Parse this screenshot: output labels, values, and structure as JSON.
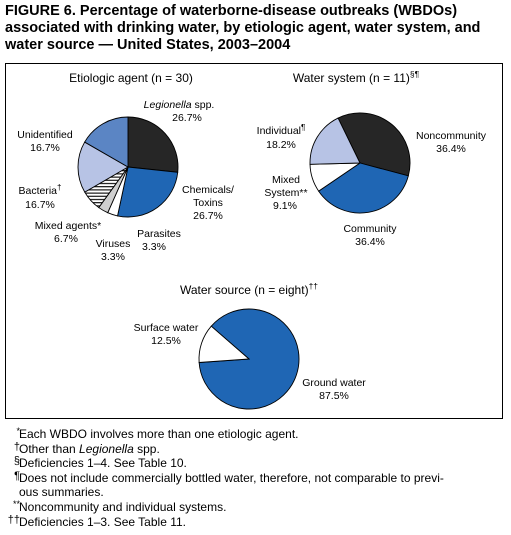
{
  "figure": {
    "title": "FIGURE 6. Percentage of waterborne-disease outbreaks (WBDOs) associated with drinking water, by etiologic agent, water system, and water source — United States, 2003–2004"
  },
  "colors": {
    "navy": "#1f66b4",
    "black": "#262626",
    "steel": "#5b85c4",
    "light": "#b7c3e5",
    "white": "#ffffff",
    "gray": "#cfcfcf",
    "stroke": "#000000"
  },
  "chart_data": [
    {
      "type": "pie",
      "title": "Etiologic agent (n = 30)",
      "slices": [
        {
          "label": "Legionella spp.",
          "label_italic": "Legionella",
          "label_rest": " spp.",
          "value": 26.7,
          "display": "26.7%",
          "color": "#262626"
        },
        {
          "label": "Chemicals/ Toxins",
          "label_lines": [
            "Chemicals/",
            "Toxins"
          ],
          "value": 26.7,
          "display": "26.7%",
          "color": "#1f66b4"
        },
        {
          "label": "Parasites",
          "value": 3.3,
          "display": "3.3%",
          "color": "#ffffff"
        },
        {
          "label": "Viruses",
          "value": 3.3,
          "display": "3.3%",
          "color": "#cfcfcf"
        },
        {
          "label": "Mixed agents*",
          "value": 6.7,
          "display": "6.7%",
          "color": "hatch"
        },
        {
          "label": "Bacteria†",
          "label_base": "Bacteria",
          "label_sup": "†",
          "value": 16.7,
          "display": "16.7%",
          "color": "#b7c3e5"
        },
        {
          "label": "Unidentified",
          "value": 16.7,
          "display": "16.7%",
          "color": "#5b85c4"
        }
      ]
    },
    {
      "type": "pie",
      "title": "Water system (n = 11)§¶",
      "title_base": "Water system (n = 11)",
      "title_sup": "§¶",
      "slices": [
        {
          "label": "Noncommunity",
          "value": 36.4,
          "display": "36.4%",
          "color": "#262626"
        },
        {
          "label": "Community",
          "value": 36.4,
          "display": "36.4%",
          "color": "#1f66b4"
        },
        {
          "label": "Mixed System**",
          "label_lines": [
            "Mixed",
            "System**"
          ],
          "value": 9.1,
          "display": "9.1%",
          "color": "#ffffff"
        },
        {
          "label": "Individual¶",
          "label_base": "Individual",
          "label_sup": "¶",
          "value": 18.2,
          "display": "18.2%",
          "color": "#b7c3e5"
        }
      ]
    },
    {
      "type": "pie",
      "title": "Water source (n = eight)††",
      "title_base": "Water source (n = eight)",
      "title_sup": "††",
      "slices": [
        {
          "label": "Ground water",
          "value": 87.5,
          "display": "87.5%",
          "color": "#1f66b4"
        },
        {
          "label": "Surface water",
          "value": 12.5,
          "display": "12.5%",
          "color": "#ffffff"
        }
      ]
    }
  ],
  "footnotes": [
    {
      "mark": "*",
      "text": "Each WBDO involves more than one etiologic agent."
    },
    {
      "mark": "†",
      "text_pre": "Other than ",
      "text_italic": "Legionella",
      "text_post": " spp.",
      "text": "Other than Legionella spp."
    },
    {
      "mark": "§",
      "text": "Deficiencies 1–4. See Table 10."
    },
    {
      "mark": "¶",
      "text": "Does not include commercially bottled water, therefore, not comparable to previ-",
      "text_cont": "ous summaries."
    },
    {
      "mark": "**",
      "text": "Noncommunity and individual systems."
    },
    {
      "mark": "††",
      "text": "Deficiencies 1–3. See Table 11."
    }
  ]
}
